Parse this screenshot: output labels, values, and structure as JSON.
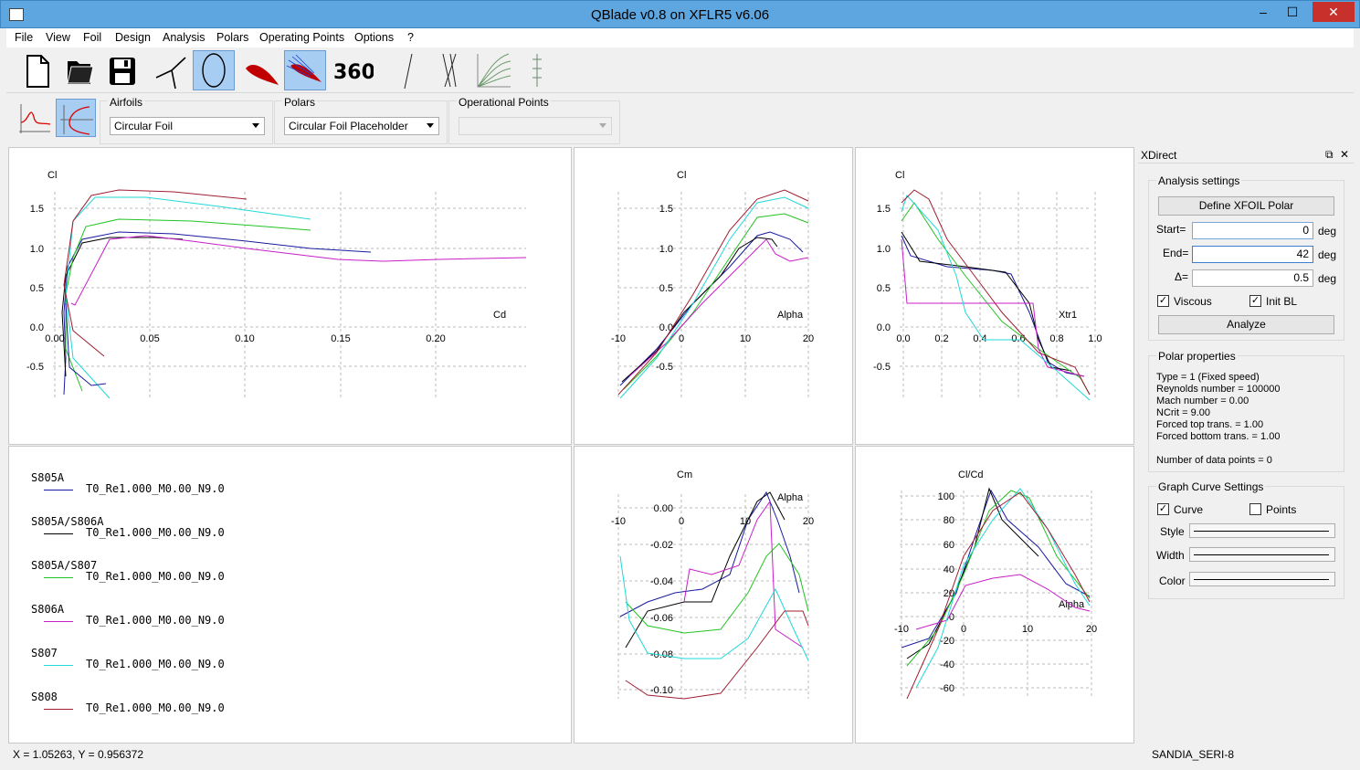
{
  "window": {
    "title": "QBlade v0.8 on XFLR5 v6.06",
    "minimize": "–",
    "maximize": "☐",
    "close": "✕"
  },
  "menu": [
    "File",
    "View",
    "Foil",
    "Design",
    "Analysis",
    "Polars",
    "Operating Points",
    "Options",
    "?"
  ],
  "toolbar": {
    "buttons": [
      "new-file",
      "open-folder",
      "save",
      "rotor-blade",
      "airfoil-design",
      "foil-shape",
      "xfoil-direct",
      "360-polar",
      "single-line",
      "multi-line",
      "polar-fan",
      "turbine-sim"
    ],
    "label_360": "360°"
  },
  "selectors": {
    "airfoils_label": "Airfoils",
    "airfoils_value": "Circular Foil",
    "polars_label": "Polars",
    "polars_value": "Circular Foil Placeholder",
    "oppoints_label": "Operational Points",
    "oppoints_value": ""
  },
  "graphs": {
    "g1": {
      "y_title": "Cl",
      "x_title": "Cd",
      "xticks": [
        "0.00",
        "0.05",
        "0.10",
        "0.15",
        "0.20"
      ],
      "yticks": [
        "1.5",
        "1.0",
        "0.5",
        "0.0",
        "-0.5"
      ]
    },
    "g2": {
      "y_title": "Cl",
      "x_title": "Alpha",
      "xticks": [
        "-10",
        "0",
        "10",
        "20"
      ],
      "yticks": [
        "1.5",
        "1.0",
        "0.5",
        "0.0",
        "-0.5"
      ]
    },
    "g3": {
      "y_title": "Cl",
      "x_title": "Xtr1",
      "xticks": [
        "0.0",
        "0.2",
        "0.4",
        "0.6",
        "0.8",
        "1.0"
      ],
      "yticks": [
        "1.5",
        "1.0",
        "0.5",
        "0.0",
        "-0.5"
      ]
    },
    "g4": {
      "y_title": "Cm",
      "x_title": "Alpha",
      "xticks": [
        "-10",
        "0",
        "10",
        "20"
      ],
      "yticks": [
        "0.00",
        "-0.02",
        "-0.04",
        "-0.06",
        "-0.08",
        "-0.10"
      ]
    },
    "g5": {
      "y_title": "Cl/Cd",
      "x_title": "Alpha",
      "xticks": [
        "-10",
        "0",
        "10",
        "20"
      ],
      "yticks": [
        "100",
        "80",
        "60",
        "40",
        "20",
        "0",
        "-20",
        "-40",
        "-60"
      ]
    }
  },
  "legend": [
    {
      "foil": "S805A",
      "polar": "T0_Re1.000_M0.00_N9.0",
      "color": "#1a1aa0"
    },
    {
      "foil": "S805A/S806A",
      "polar": "T0_Re1.000_M0.00_N9.0",
      "color": "#000000"
    },
    {
      "foil": "S805A/S807",
      "polar": "T0_Re1.000_M0.00_N9.0",
      "color": "#22c322"
    },
    {
      "foil": "S806A",
      "polar": "T0_Re1.000_M0.00_N9.0",
      "color": "#c81ec8"
    },
    {
      "foil": "S807",
      "polar": "T0_Re1.000_M0.00_N9.0",
      "color": "#22d8d8"
    },
    {
      "foil": "S808",
      "polar": "T0_Re1.000_M0.00_N9.0",
      "color": "#a01e32"
    }
  ],
  "xdirect": {
    "title": "XDirect",
    "analysis_settings": "Analysis settings",
    "define_polar": "Define XFOIL Polar",
    "start_label": "Start=",
    "start_value": "0",
    "start_unit": "deg",
    "end_label": "End=",
    "end_value": "42",
    "end_unit": "deg",
    "delta_label": "Δ=",
    "delta_value": "0.5",
    "delta_unit": "deg",
    "viscous": "Viscous",
    "init_bl": "Init BL",
    "analyze": "Analyze",
    "polar_properties": "Polar properties",
    "props": [
      "Type = 1 (Fixed speed)",
      "Reynolds number = 100000",
      "Mach number =  0.00",
      "NCrit =   9.00",
      "Forced top trans. =   1.00",
      "Forced bottom trans. =   1.00",
      "",
      "Number of data points = 0"
    ],
    "curve_settings": "Graph Curve Settings",
    "curve": "Curve",
    "points": "Points",
    "style": "Style",
    "width": "Width",
    "color": "Color"
  },
  "status": {
    "coords": "X = 1.05263, Y = 0.956372",
    "turbine": "SANDIA_SERI-8"
  }
}
